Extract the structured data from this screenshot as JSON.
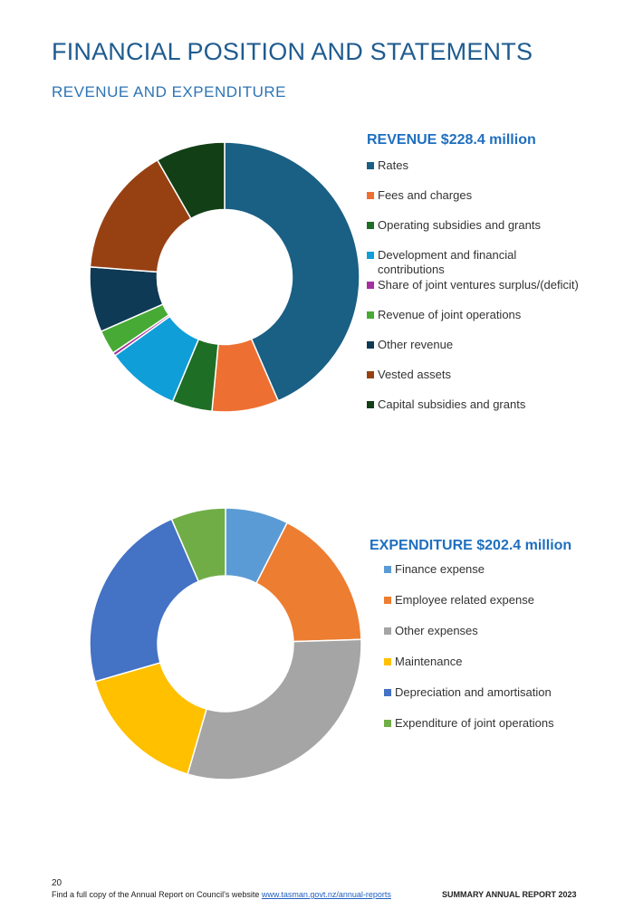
{
  "page": {
    "title": "FINANCIAL POSITION AND STATEMENTS",
    "section_title": "REVENUE AND EXPENDITURE"
  },
  "chart_data": [
    {
      "type": "pie",
      "style": "donut",
      "title": "REVENUE $228.4 million",
      "legend": "right",
      "categories": [
        "Rates",
        "Fees and charges",
        "Operating subsidies and grants",
        "Development and financial contributions",
        "Share of joint ventures surplus/(deficit)",
        "Revenue of joint operations",
        "Other revenue",
        "Vested assets",
        "Capital subsidies and grants"
      ],
      "values": [
        43.5,
        8.0,
        4.8,
        8.8,
        0.4,
        2.9,
        7.8,
        15.5,
        8.3
      ],
      "colors": [
        "#1a5f84",
        "#ed7032",
        "#1e6e25",
        "#109ed9",
        "#a4319f",
        "#46aa35",
        "#0f3a55",
        "#974113",
        "#123f16"
      ]
    },
    {
      "type": "pie",
      "style": "donut",
      "title": "EXPENDITURE $202.4 million",
      "legend": "right",
      "categories": [
        "Finance expense",
        "Employee related expense",
        "Other expenses",
        "Maintenance",
        "Depreciation and amortisation",
        "Expenditure of joint operations"
      ],
      "values": [
        7.5,
        17.0,
        30.0,
        16.0,
        23.0,
        6.5
      ],
      "colors": [
        "#5b9bd5",
        "#ed7d31",
        "#a5a5a5",
        "#ffc000",
        "#4472c4",
        "#70ad47"
      ]
    }
  ],
  "footer": {
    "page_number": "20",
    "text": "Find a full copy of the Annual Report on Council's website ",
    "link": "www.tasman.govt.nz/annual-reports",
    "report_name": "SUMMARY ANNUAL REPORT 2023"
  }
}
